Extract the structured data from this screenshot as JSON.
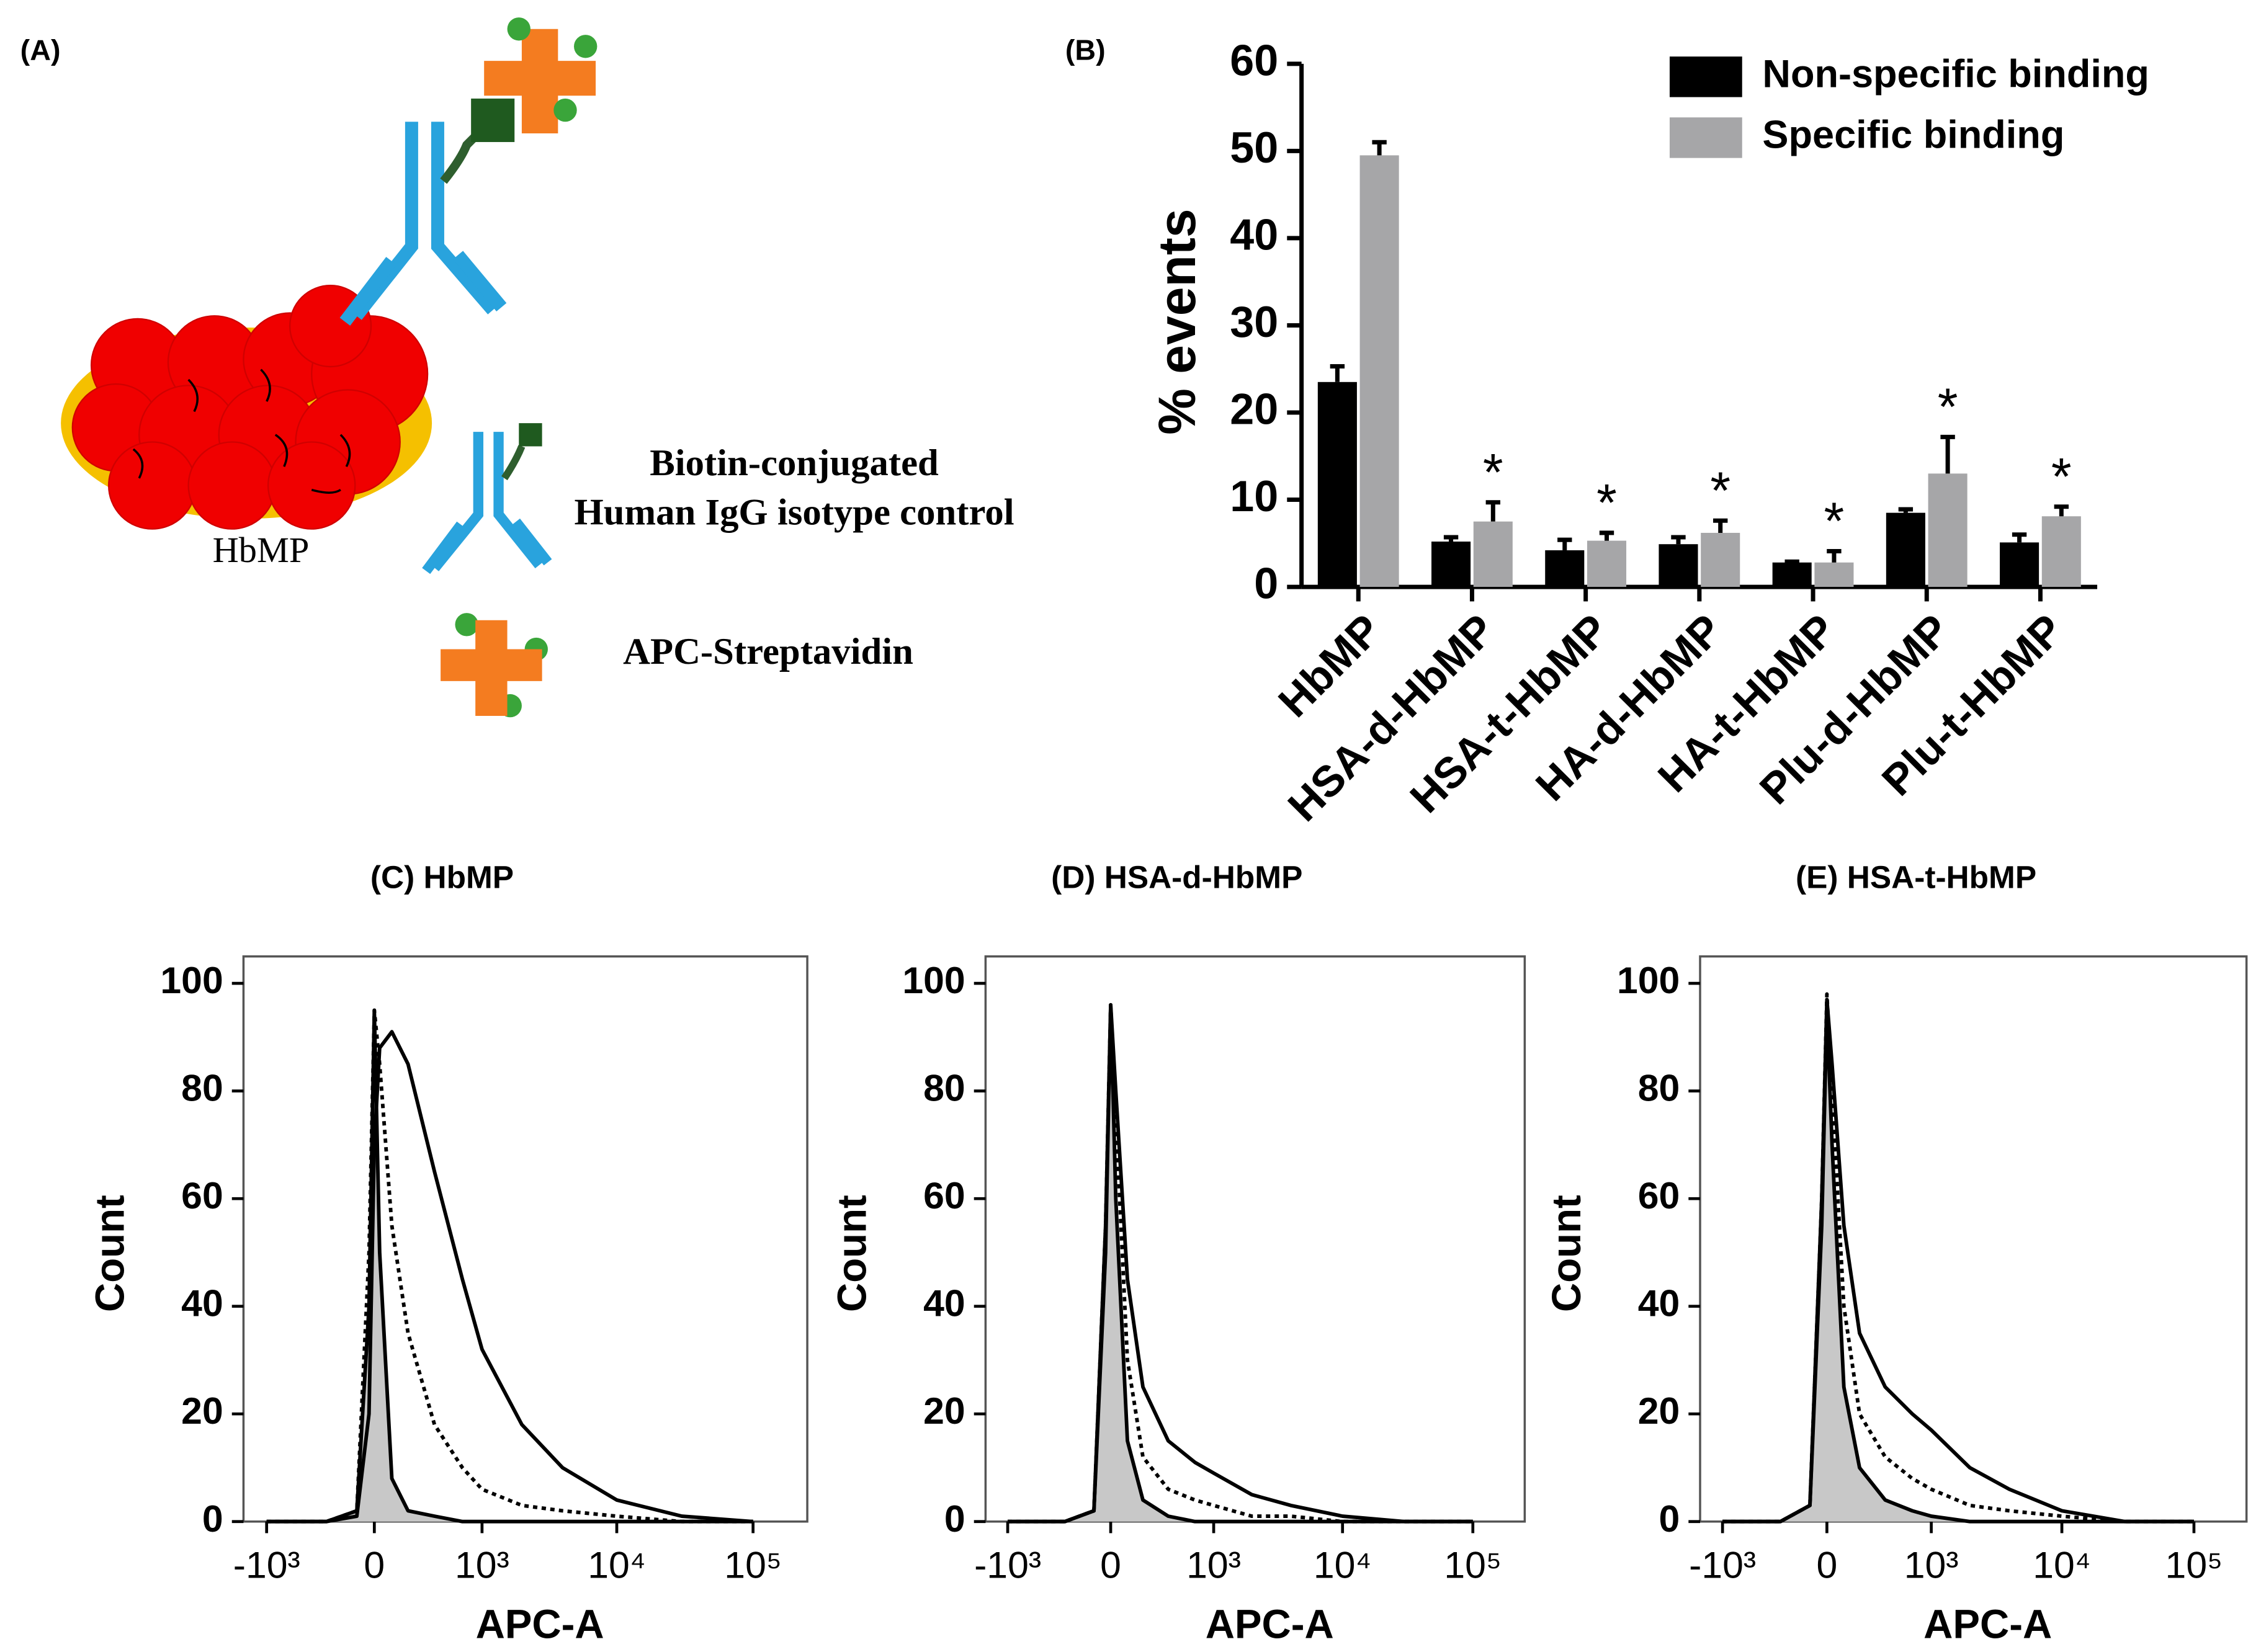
{
  "diagram": {
    "label": "(A)",
    "particle": "HbMP",
    "control_line1": "Biotin-conjugated",
    "control_line2": "Human IgG isotype control",
    "streptavidin": "APC-Streptavidin"
  },
  "chart_data": [
    {
      "type": "bar",
      "label": "(B)",
      "ylabel": "% events",
      "categories": [
        "HbMP",
        "HSA-d-HbMP",
        "HSA-t-HbMP",
        "HA-d-HbMP",
        "HA-t-HbMP",
        "Plu-d-HbMP",
        "Plu-t-HbMP"
      ],
      "series": [
        {
          "name": "Non-specific binding",
          "color": "#000000",
          "values": [
            23.5,
            5.2,
            4.2,
            4.9,
            2.8,
            8.5,
            5.1
          ],
          "errors": [
            1.8,
            0.5,
            1.2,
            0.8,
            0.1,
            0.4,
            0.9
          ]
        },
        {
          "name": "Specific binding",
          "color": "#a6a6a8",
          "values": [
            49.5,
            7.5,
            5.3,
            6.2,
            2.8,
            13,
            8.1
          ],
          "errors": [
            1.5,
            2.2,
            0.9,
            1.4,
            1.3,
            4.2,
            1.1
          ]
        }
      ],
      "annotations": [
        null,
        "*",
        "*",
        "*",
        "*",
        "*",
        "*"
      ],
      "ylim": [
        0,
        60
      ],
      "yticks": [
        0,
        10,
        20,
        30,
        40,
        50,
        60
      ],
      "legend": "top-right"
    },
    {
      "type": "line",
      "title": "(C) HbMP",
      "xlabel": "APC-A",
      "ylabel": "Count",
      "xscale": "asinh",
      "x": [
        -1000,
        -300,
        -100,
        -30,
        0,
        30,
        100,
        200,
        400,
        700,
        1000,
        2000,
        4000,
        10000,
        30000,
        100000
      ],
      "series": [
        {
          "color": "#000000",
          "style": "solid",
          "fill": "#c8c8c8",
          "values": [
            0,
            0,
            2,
            40,
            95,
            50,
            8,
            2,
            1,
            0,
            0,
            0,
            0,
            0,
            0,
            0
          ]
        },
        {
          "color": "#000000",
          "style": "dotted",
          "values": [
            0,
            0,
            2,
            50,
            95,
            85,
            55,
            35,
            18,
            10,
            6,
            3,
            2,
            1,
            0,
            0
          ]
        },
        {
          "color": "#000000",
          "style": "solid",
          "values": [
            0,
            0,
            1,
            20,
            70,
            88,
            91,
            85,
            65,
            45,
            32,
            18,
            10,
            4,
            1,
            0
          ]
        }
      ],
      "xlim": [
        -1500,
        250000
      ],
      "xticks": [
        {
          "value": -1000,
          "label": "-10³"
        },
        0,
        {
          "value": 1000,
          "label": "10³"
        },
        {
          "value": 10000,
          "label": "10⁴"
        },
        {
          "value": 100000,
          "label": "10⁵"
        }
      ],
      "ylim": [
        0,
        105
      ],
      "yticks": [
        0,
        20,
        40,
        60,
        80,
        100
      ]
    },
    {
      "type": "line",
      "title": "(D) HSA-d-HbMP",
      "xlabel": "APC-A",
      "ylabel": "Count",
      "xscale": "asinh",
      "x": [
        -1000,
        -300,
        -100,
        -30,
        0,
        30,
        100,
        200,
        400,
        700,
        1000,
        2000,
        4000,
        10000,
        30000,
        100000
      ],
      "series": [
        {
          "color": "#000000",
          "style": "solid",
          "fill": "#c8c8c8",
          "values": [
            0,
            0,
            2,
            50,
            96,
            60,
            15,
            4,
            1,
            0,
            0,
            0,
            0,
            0,
            0,
            0
          ]
        },
        {
          "color": "#000000",
          "style": "dotted",
          "values": [
            0,
            0,
            2,
            55,
            96,
            75,
            30,
            12,
            6,
            4,
            3,
            1,
            1,
            0,
            0,
            0
          ]
        },
        {
          "color": "#000000",
          "style": "solid",
          "values": [
            0,
            0,
            2,
            55,
            96,
            80,
            45,
            25,
            15,
            11,
            9,
            5,
            3,
            1,
            0,
            0
          ]
        }
      ],
      "xlim": [
        -1500,
        250000
      ],
      "xticks": [
        {
          "value": -1000,
          "label": "-10³"
        },
        0,
        {
          "value": 1000,
          "label": "10³"
        },
        {
          "value": 10000,
          "label": "10⁴"
        },
        {
          "value": 100000,
          "label": "10⁵"
        }
      ],
      "ylim": [
        0,
        105
      ],
      "yticks": [
        0,
        20,
        40,
        60,
        80,
        100
      ]
    },
    {
      "type": "line",
      "title": "(E) HSA-t-HbMP",
      "xlabel": "APC-A",
      "ylabel": "Count",
      "xscale": "asinh",
      "x": [
        -1000,
        -300,
        -100,
        -30,
        0,
        30,
        100,
        200,
        400,
        700,
        1000,
        2000,
        4000,
        10000,
        30000,
        100000
      ],
      "series": [
        {
          "color": "#000000",
          "style": "solid",
          "fill": "#c8c8c8",
          "values": [
            0,
            0,
            3,
            55,
            95,
            70,
            25,
            10,
            4,
            2,
            1,
            0,
            0,
            0,
            0,
            0
          ]
        },
        {
          "color": "#000000",
          "style": "dotted",
          "values": [
            0,
            0,
            3,
            60,
            98,
            80,
            40,
            20,
            12,
            8,
            6,
            3,
            2,
            1,
            0,
            0
          ]
        },
        {
          "color": "#000000",
          "style": "solid",
          "values": [
            0,
            0,
            3,
            60,
            97,
            85,
            55,
            35,
            25,
            20,
            17,
            10,
            6,
            2,
            0,
            0
          ]
        }
      ],
      "xlim": [
        -1500,
        250000
      ],
      "xticks": [
        {
          "value": -1000,
          "label": "-10³"
        },
        0,
        {
          "value": 1000,
          "label": "10³"
        },
        {
          "value": 10000,
          "label": "10⁴"
        },
        {
          "value": 100000,
          "label": "10⁵"
        }
      ],
      "ylim": [
        0,
        105
      ],
      "yticks": [
        0,
        20,
        40,
        60,
        80,
        100
      ]
    }
  ]
}
